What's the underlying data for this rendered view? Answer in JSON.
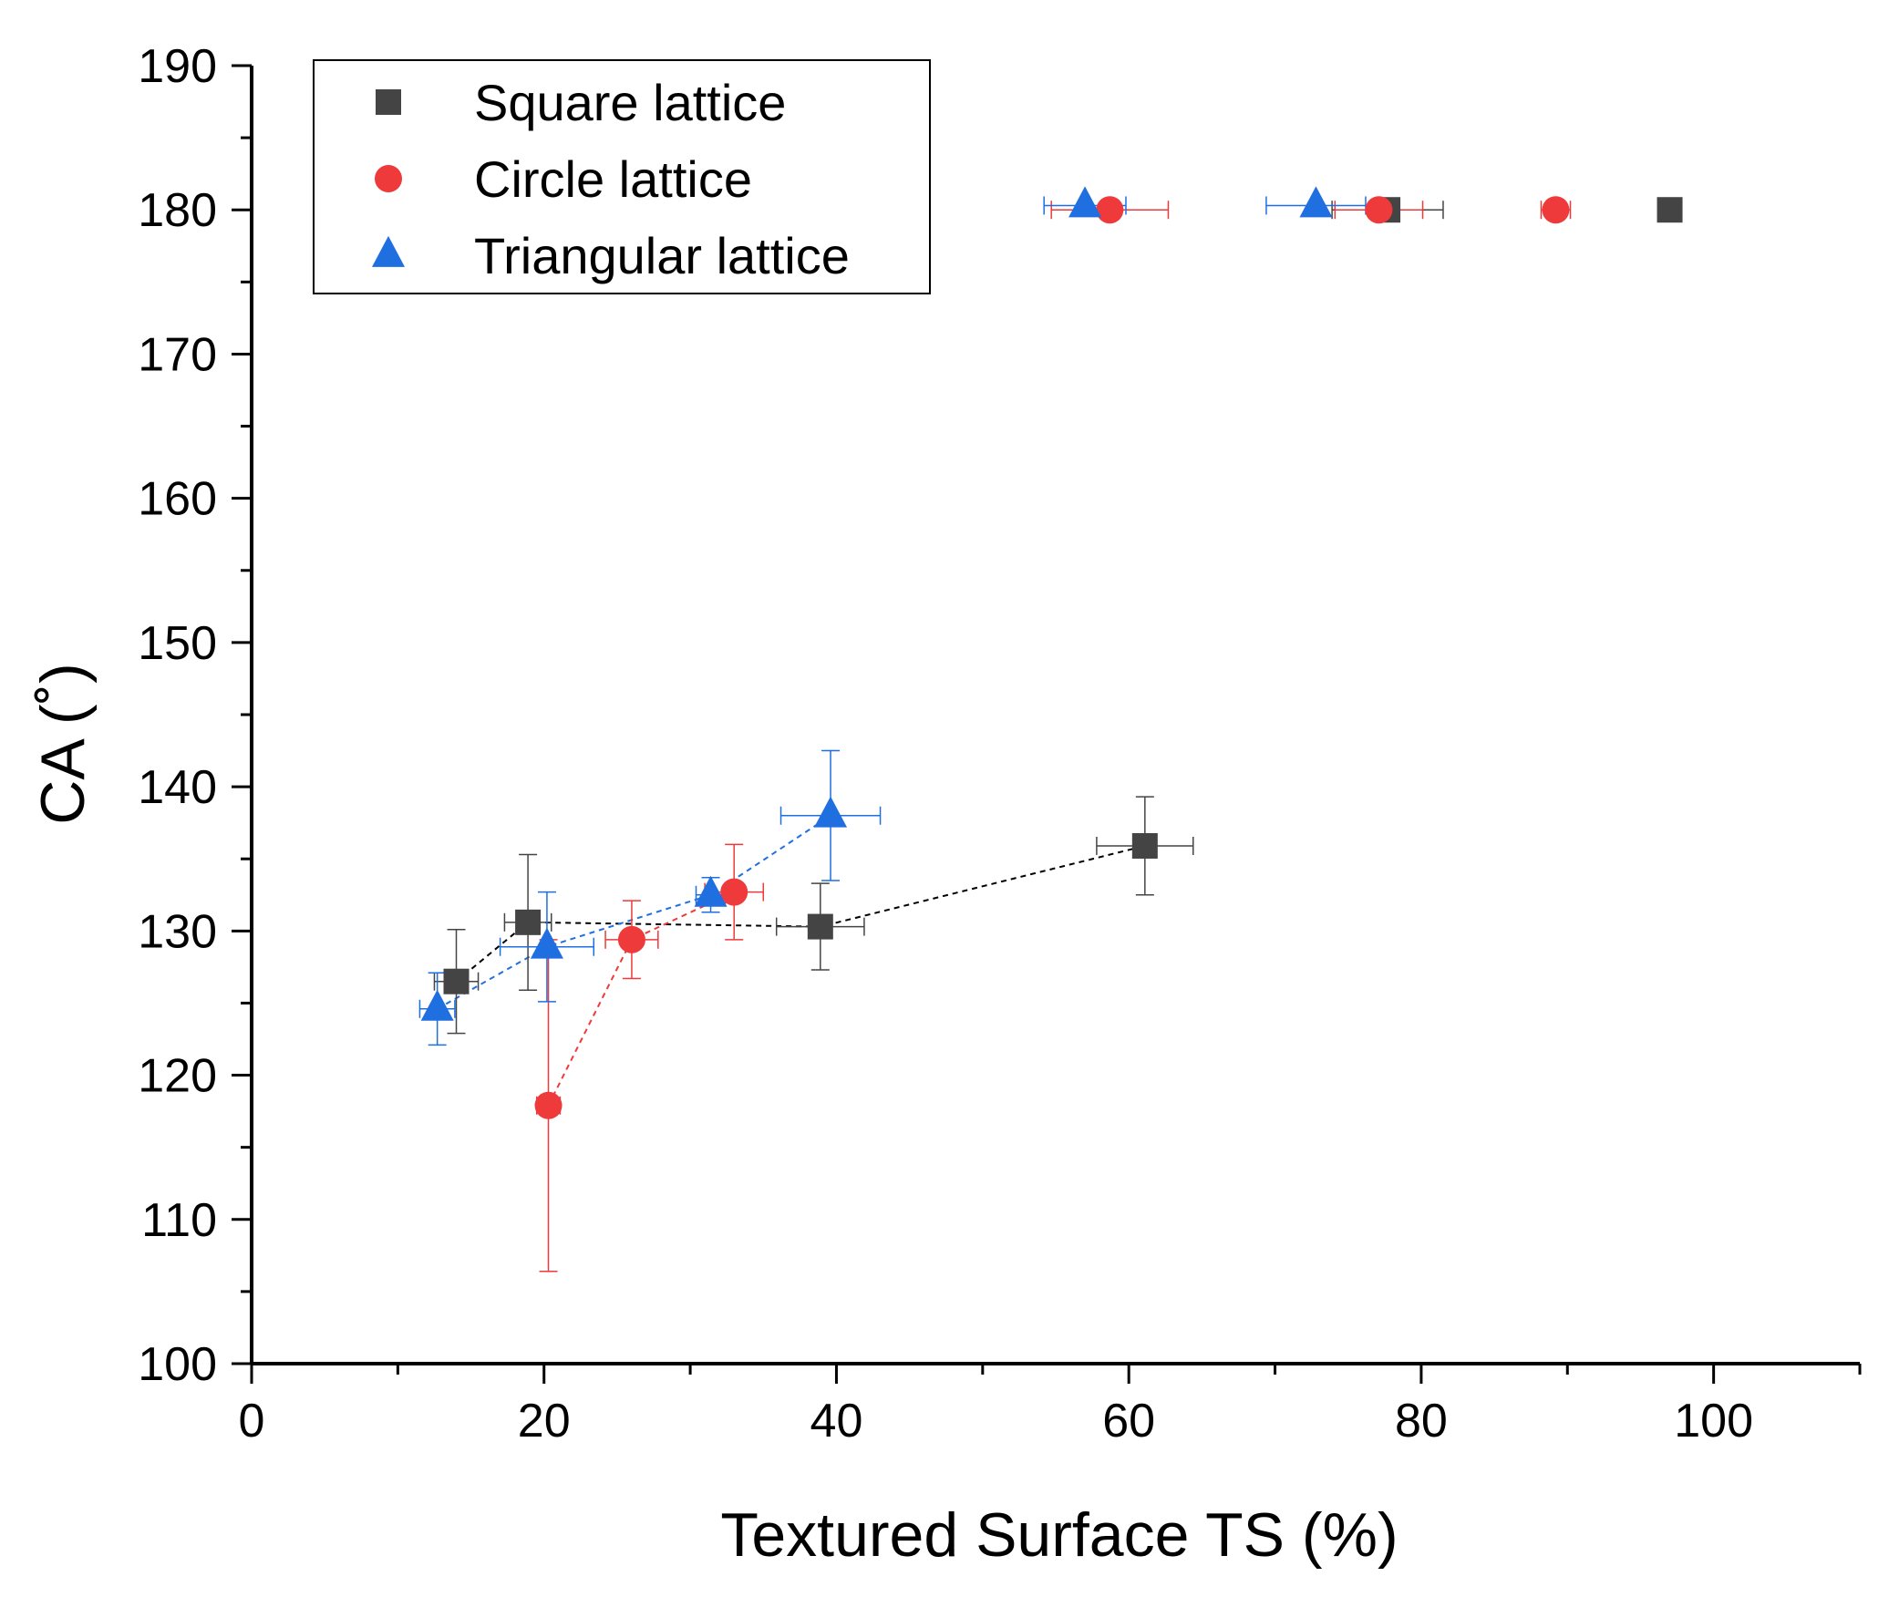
{
  "chart_data": {
    "type": "scatter",
    "title": "",
    "xlabel": "Textured Surface TS (%)",
    "ylabel": "CA (˚)",
    "xlim": [
      0,
      110
    ],
    "ylim": [
      100,
      190
    ],
    "xticks": [
      0,
      20,
      40,
      60,
      80,
      100
    ],
    "yticks": [
      100,
      110,
      120,
      130,
      140,
      150,
      160,
      170,
      180,
      190
    ],
    "grid": false,
    "legend_position": "top-left",
    "series": [
      {
        "name": "Square lattice",
        "marker": "square",
        "color": "#444444",
        "line_color": "#000000",
        "points": [
          {
            "x": 14.0,
            "y": 126.5,
            "xerr": 1.5,
            "yerr": 3.6
          },
          {
            "x": 18.9,
            "y": 130.6,
            "xerr": 1.6,
            "yerr": 4.7
          },
          {
            "x": 38.9,
            "y": 130.3,
            "xerr": 3.0,
            "yerr": 3.0
          },
          {
            "x": 61.1,
            "y": 135.9,
            "xerr": 3.3,
            "yerr": 3.4
          },
          {
            "x": 77.7,
            "y": 180.0,
            "xerr": 3.8,
            "yerr": 0
          },
          {
            "x": 97.0,
            "y": 180.0,
            "xerr": 0,
            "yerr": 0
          }
        ],
        "connected_count": 4
      },
      {
        "name": "Circle lattice",
        "marker": "circle",
        "color": "#EE3A3A",
        "line_color": "#EE3A3A",
        "points": [
          {
            "x": 20.3,
            "y": 117.9,
            "xerr": 0.8,
            "yerr": 11.5
          },
          {
            "x": 26.0,
            "y": 129.4,
            "xerr": 1.8,
            "yerr": 2.7
          },
          {
            "x": 33.0,
            "y": 132.7,
            "xerr": 2.0,
            "yerr": 3.3
          },
          {
            "x": 58.7,
            "y": 180.0,
            "xerr": 4.0,
            "yerr": 0
          },
          {
            "x": 77.1,
            "y": 180.0,
            "xerr": 3.0,
            "yerr": 0
          },
          {
            "x": 89.2,
            "y": 180.0,
            "xerr": 1.0,
            "yerr": 0
          }
        ],
        "connected_count": 3
      },
      {
        "name": "Triangular lattice",
        "marker": "triangle",
        "color": "#1F6FE0",
        "line_color": "#1F6FE0",
        "points": [
          {
            "x": 12.7,
            "y": 124.6,
            "xerr": 1.2,
            "yerr": 2.5
          },
          {
            "x": 20.2,
            "y": 128.9,
            "xerr": 3.2,
            "yerr": 3.8
          },
          {
            "x": 31.4,
            "y": 132.5,
            "xerr": 1.0,
            "yerr": 1.2
          },
          {
            "x": 39.6,
            "y": 138.0,
            "xerr": 3.4,
            "yerr": 4.5
          },
          {
            "x": 57.0,
            "y": 180.3,
            "xerr": 2.8,
            "yerr": 0
          },
          {
            "x": 72.8,
            "y": 180.3,
            "xerr": 3.4,
            "yerr": 0
          }
        ],
        "connected_count": 4
      }
    ]
  }
}
